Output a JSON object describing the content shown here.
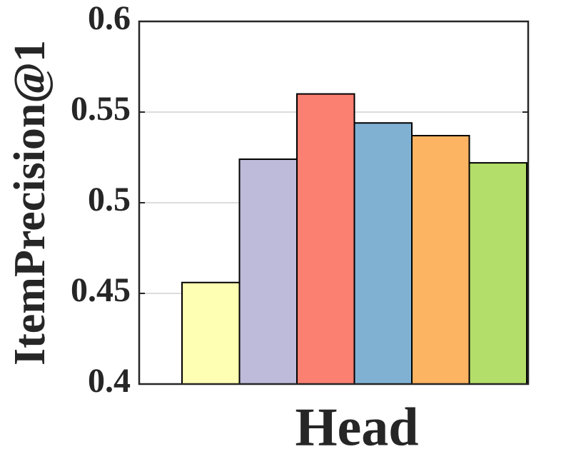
{
  "chart_data": {
    "type": "bar",
    "xlabel": "Head",
    "ylabel": "ItemPrecision@1",
    "values": [
      0.456,
      0.524,
      0.56,
      0.544,
      0.537,
      0.522
    ],
    "colors": [
      "#ffffb3",
      "#bebada",
      "#fb8072",
      "#80b1d3",
      "#fdb462",
      "#b3de69"
    ],
    "ylim": [
      0.4,
      0.6
    ],
    "yticks": [
      0.4,
      0.45,
      0.5,
      0.55,
      0.6
    ],
    "grid": true
  }
}
